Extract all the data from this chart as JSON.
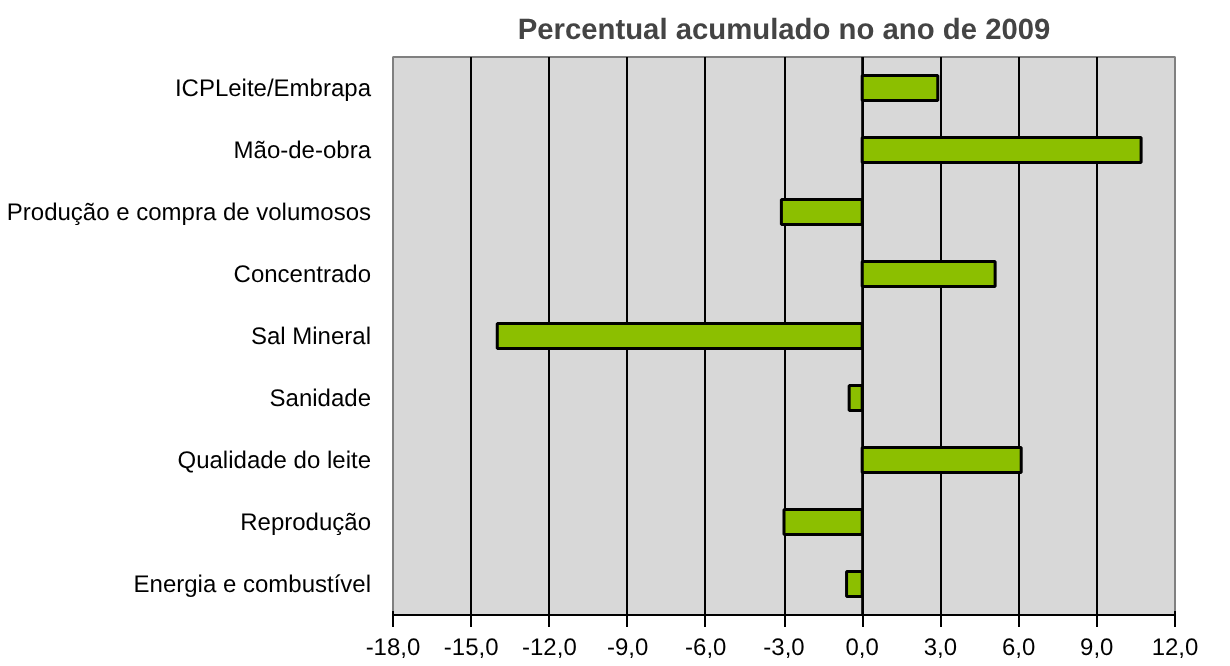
{
  "chart_data": {
    "type": "bar",
    "orientation": "horizontal",
    "title": "Percentual acumulado no ano de 2009",
    "categories": [
      "ICPLeite/Embrapa",
      "Mão-de-obra",
      "Produção e compra de volumosos",
      "Concentrado",
      "Sal Mineral",
      "Sanidade",
      "Qualidade do leite",
      "Reprodução",
      "Energia e combustível"
    ],
    "values": [
      2.9,
      10.7,
      -3.1,
      5.1,
      -14.0,
      -0.5,
      6.1,
      -3.0,
      -0.6
    ],
    "color": "#8cbf00",
    "xlim": [
      -18,
      12
    ],
    "xticks": [
      {
        "value": -18,
        "label": "-18,0"
      },
      {
        "value": -15,
        "label": "-15,0"
      },
      {
        "value": -12,
        "label": "-12,0"
      },
      {
        "value": -9,
        "label": "-9,0"
      },
      {
        "value": -6,
        "label": "-6,0"
      },
      {
        "value": -3,
        "label": "-3,0"
      },
      {
        "value": 0,
        "label": "0,0"
      },
      {
        "value": 3,
        "label": "3,0"
      },
      {
        "value": 6,
        "label": "6,0"
      },
      {
        "value": 9,
        "label": "9,0"
      },
      {
        "value": 12,
        "label": "12,0"
      }
    ],
    "grid": "x"
  }
}
